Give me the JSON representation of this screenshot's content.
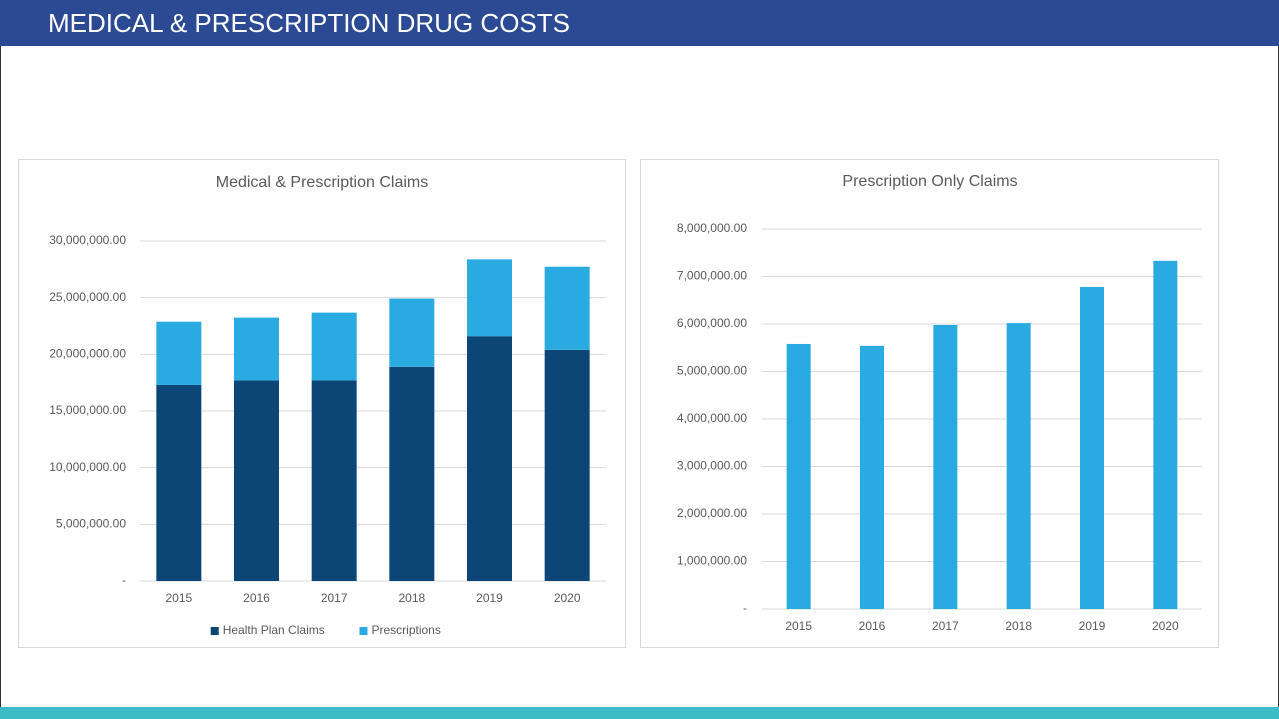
{
  "header": {
    "title": "MEDICAL & PRESCRIPTION DRUG COSTS"
  },
  "chart_data": [
    {
      "type": "bar",
      "stacked": true,
      "title": "Medical & Prescription Claims",
      "categories": [
        "2015",
        "2016",
        "2017",
        "2018",
        "2019",
        "2020"
      ],
      "series": [
        {
          "name": "Health Plan Claims",
          "color": "#0b4677",
          "values": [
            17300000,
            17700000,
            17700000,
            18900000,
            21600000,
            20400000
          ]
        },
        {
          "name": "Prescriptions",
          "color": "#29abe2",
          "values": [
            5580000,
            5540000,
            5980000,
            6020000,
            6780000,
            7330000
          ]
        }
      ],
      "ylim": [
        0,
        30000000
      ],
      "yticks": [
        {
          "value": 0,
          "label": "-"
        },
        {
          "value": 5000000,
          "label": "5,000,000.00"
        },
        {
          "value": 10000000,
          "label": "10,000,000.00"
        },
        {
          "value": 15000000,
          "label": "15,000,000.00"
        },
        {
          "value": 20000000,
          "label": "20,000,000.00"
        },
        {
          "value": 25000000,
          "label": "25,000,000.00"
        },
        {
          "value": 30000000,
          "label": "30,000,000.00"
        }
      ],
      "grid": true,
      "legend": "bottom"
    },
    {
      "type": "bar",
      "title": "Prescription Only Claims",
      "categories": [
        "2015",
        "2016",
        "2017",
        "2018",
        "2019",
        "2020"
      ],
      "values": [
        5580000,
        5540000,
        5980000,
        6020000,
        6780000,
        7330000
      ],
      "color": "#29abe2",
      "ylim": [
        0,
        8000000
      ],
      "yticks": [
        {
          "value": 0,
          "label": "-"
        },
        {
          "value": 1000000,
          "label": "1,000,000.00"
        },
        {
          "value": 2000000,
          "label": "2,000,000.00"
        },
        {
          "value": 3000000,
          "label": "3,000,000.00"
        },
        {
          "value": 4000000,
          "label": "4,000,000.00"
        },
        {
          "value": 5000000,
          "label": "5,000,000.00"
        },
        {
          "value": 6000000,
          "label": "6,000,000.00"
        },
        {
          "value": 7000000,
          "label": "7,000,000.00"
        },
        {
          "value": 8000000,
          "label": "8,000,000.00"
        }
      ],
      "grid": true
    }
  ]
}
